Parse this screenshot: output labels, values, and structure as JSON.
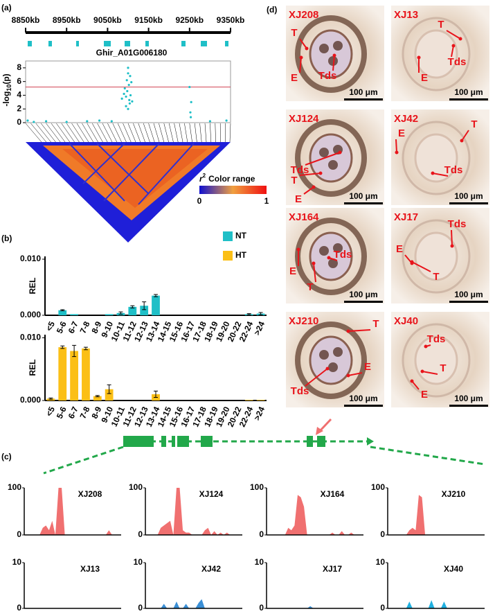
{
  "panel_a": {
    "label": "(a)",
    "xlim": [
      8850,
      9350
    ],
    "xticks": [
      {
        "value": 8850,
        "label": "8850kb"
      },
      {
        "value": 8950,
        "label": "8950kb"
      },
      {
        "value": 9050,
        "label": "9050kb"
      },
      {
        "value": 9150,
        "label": "9150kb"
      },
      {
        "value": 9250,
        "label": "9250kb"
      },
      {
        "value": 9350,
        "label": "9350kb"
      }
    ],
    "gene": "Ghir_A01G006180",
    "ylabel": {
      "base": "-log",
      "sub": "10",
      "tail": "(p)"
    },
    "ylim": [
      0,
      9
    ],
    "yticks": [
      0,
      2,
      4,
      6,
      8
    ],
    "threshold": 5.2,
    "point_color": "#1fbfc7",
    "points": {
      "x": [
        8855,
        8870,
        8900,
        8950,
        9000,
        9030,
        9060,
        9085,
        9090,
        9092,
        9095,
        9097,
        9098,
        9100,
        9100,
        9102,
        9103,
        9105,
        9106,
        9108,
        9110,
        9095,
        9100,
        9104,
        9250,
        9252,
        9254,
        9253,
        9300,
        9340
      ],
      "y": [
        0.3,
        0.1,
        0.2,
        0.1,
        0.2,
        0.3,
        0.2,
        3.5,
        4.2,
        5.0,
        3.8,
        6.2,
        4.6,
        7.2,
        8.0,
        5.5,
        3.3,
        6.8,
        4.0,
        5.9,
        3.1,
        2.4,
        2.0,
        2.8,
        5.2,
        1.5,
        3.0,
        0.8,
        0.2,
        0.3
      ]
    },
    "color_range": {
      "base": "r",
      "sup": "2",
      "tail": "Color range",
      "min": "0",
      "max": "1"
    }
  },
  "panel_b": {
    "label": "(b)",
    "ylabel": "REL",
    "categories": [
      "<5",
      "5-6",
      "6-7",
      "7-8",
      "8-9",
      "9-10",
      "10-11",
      "11-12",
      "12-13",
      "13-14",
      "14-15",
      "15-16",
      "16-17",
      "17-18",
      "18-19",
      "19-20",
      "20-22",
      "22-24",
      ">24"
    ],
    "charts": [
      {
        "name": "NT",
        "color": "#1fbfc7",
        "ylim": [
          0,
          0.0105
        ],
        "yticks": [
          {
            "value": 0,
            "label": "0.000"
          },
          {
            "value": 0.01,
            "label": "0.010"
          }
        ],
        "values": [
          0,
          0.0009,
          0.0002,
          0,
          0,
          0.0002,
          0.0004,
          0.0015,
          0.0017,
          0.0035,
          0,
          0,
          0,
          0,
          0,
          0,
          0,
          0.0002,
          0.0003
        ],
        "errors": [
          0,
          0.0001,
          0,
          0,
          0,
          0,
          0.0002,
          0.0002,
          0.0007,
          0.0002,
          0,
          0,
          0,
          0,
          0,
          0,
          0,
          0.0001,
          0.0002
        ]
      },
      {
        "name": "HT",
        "color": "#fbbf16",
        "ylim": [
          0,
          0.0105
        ],
        "yticks": [
          {
            "value": 0,
            "label": "0.000"
          },
          {
            "value": 0.01,
            "label": "0.010"
          }
        ],
        "values": [
          0.0003,
          0.0085,
          0.0079,
          0.0083,
          0.0007,
          0.0018,
          0,
          0,
          0,
          0.001,
          0,
          0,
          0,
          0,
          0,
          0,
          0,
          0.0001,
          0.0001
        ],
        "errors": [
          0.0001,
          0.0002,
          0.0009,
          0.0002,
          0.0001,
          0.0007,
          0,
          0,
          0,
          0.0005,
          0,
          0,
          0,
          0,
          0,
          0,
          0,
          0,
          0
        ]
      }
    ]
  },
  "panel_c": {
    "label": "(c)",
    "plots": [
      {
        "name": "XJ208",
        "color": "#f07070",
        "ylim": [
          0,
          100
        ],
        "yticks": [
          0,
          100
        ],
        "values": [
          0,
          0,
          0,
          0,
          0,
          15,
          20,
          10,
          30,
          0,
          100,
          100,
          0,
          0,
          0,
          0,
          0,
          0,
          0,
          0,
          0,
          0,
          0,
          0,
          0,
          0,
          10,
          0,
          0,
          0
        ]
      },
      {
        "name": "XJ124",
        "color": "#f07070",
        "ylim": [
          0,
          100
        ],
        "yticks": [
          0,
          100
        ],
        "values": [
          0,
          0,
          0,
          0,
          15,
          20,
          25,
          30,
          0,
          100,
          100,
          10,
          5,
          5,
          0,
          0,
          0,
          0,
          10,
          15,
          0,
          8,
          0,
          5,
          0,
          5,
          0,
          0,
          0,
          0
        ]
      },
      {
        "name": "XJ164",
        "color": "#f07070",
        "ylim": [
          0,
          100
        ],
        "yticks": [
          0,
          100
        ],
        "values": [
          0,
          0,
          0,
          0,
          0,
          0,
          15,
          10,
          20,
          85,
          80,
          60,
          0,
          0,
          0,
          0,
          0,
          0,
          0,
          0,
          5,
          0,
          0,
          8,
          0,
          0,
          5,
          0,
          0,
          0
        ]
      },
      {
        "name": "XJ210",
        "color": "#f07070",
        "ylim": [
          0,
          100
        ],
        "yticks": [
          0,
          100
        ],
        "values": [
          0,
          0,
          0,
          0,
          0,
          0,
          10,
          15,
          10,
          85,
          80,
          0,
          0,
          0,
          0,
          0,
          0,
          0,
          0,
          0,
          0,
          0,
          0,
          0,
          0,
          0,
          0,
          0,
          0,
          0
        ]
      },
      {
        "name": "XJ13",
        "color": "#3a8fd6",
        "ylim": [
          0,
          10
        ],
        "yticks": [
          0,
          10
        ],
        "values": [
          0,
          0,
          0,
          0,
          0,
          0,
          0,
          0,
          0,
          0,
          0,
          0,
          0,
          0,
          0,
          0,
          0,
          0,
          0,
          0,
          0,
          0,
          0,
          0,
          0,
          0,
          0,
          0,
          0,
          0
        ]
      },
      {
        "name": "XJ42",
        "color": "#3a8fd6",
        "ylim": [
          0,
          10
        ],
        "yticks": [
          0,
          10
        ],
        "values": [
          0,
          0,
          0,
          0,
          0,
          1,
          0,
          0,
          0,
          1.5,
          0,
          0,
          1,
          0,
          0,
          0,
          1.2,
          2,
          0,
          0,
          0,
          0,
          0,
          0,
          0,
          0,
          0,
          0,
          0,
          0
        ]
      },
      {
        "name": "XJ17",
        "color": "#3a8fd6",
        "ylim": [
          0,
          10
        ],
        "yticks": [
          0,
          10
        ],
        "values": [
          0,
          0,
          0,
          0,
          0,
          0,
          0,
          0,
          0,
          0,
          0,
          0,
          0,
          0.5,
          0,
          0,
          0,
          0,
          0,
          0,
          0,
          0,
          0,
          0,
          0,
          0,
          0,
          0,
          0,
          0
        ]
      },
      {
        "name": "XJ40",
        "color": "#1fb0e0",
        "ylim": [
          0,
          10
        ],
        "yticks": [
          0,
          10
        ],
        "values": [
          0,
          0,
          0,
          0,
          0,
          0,
          1.5,
          0,
          0,
          0,
          0,
          0,
          0,
          1.8,
          0,
          0,
          0,
          1.5,
          0,
          0,
          0,
          0,
          0,
          0,
          0,
          0,
          0,
          0,
          0,
          0
        ]
      }
    ]
  },
  "panel_d": {
    "label": "(d)",
    "scale_bar": "100 μm",
    "marks": [
      "T",
      "E",
      "Tds"
    ],
    "tiles": [
      "XJ208",
      "XJ13",
      "XJ124",
      "XJ42",
      "XJ164",
      "XJ17",
      "XJ210",
      "XJ40"
    ]
  }
}
